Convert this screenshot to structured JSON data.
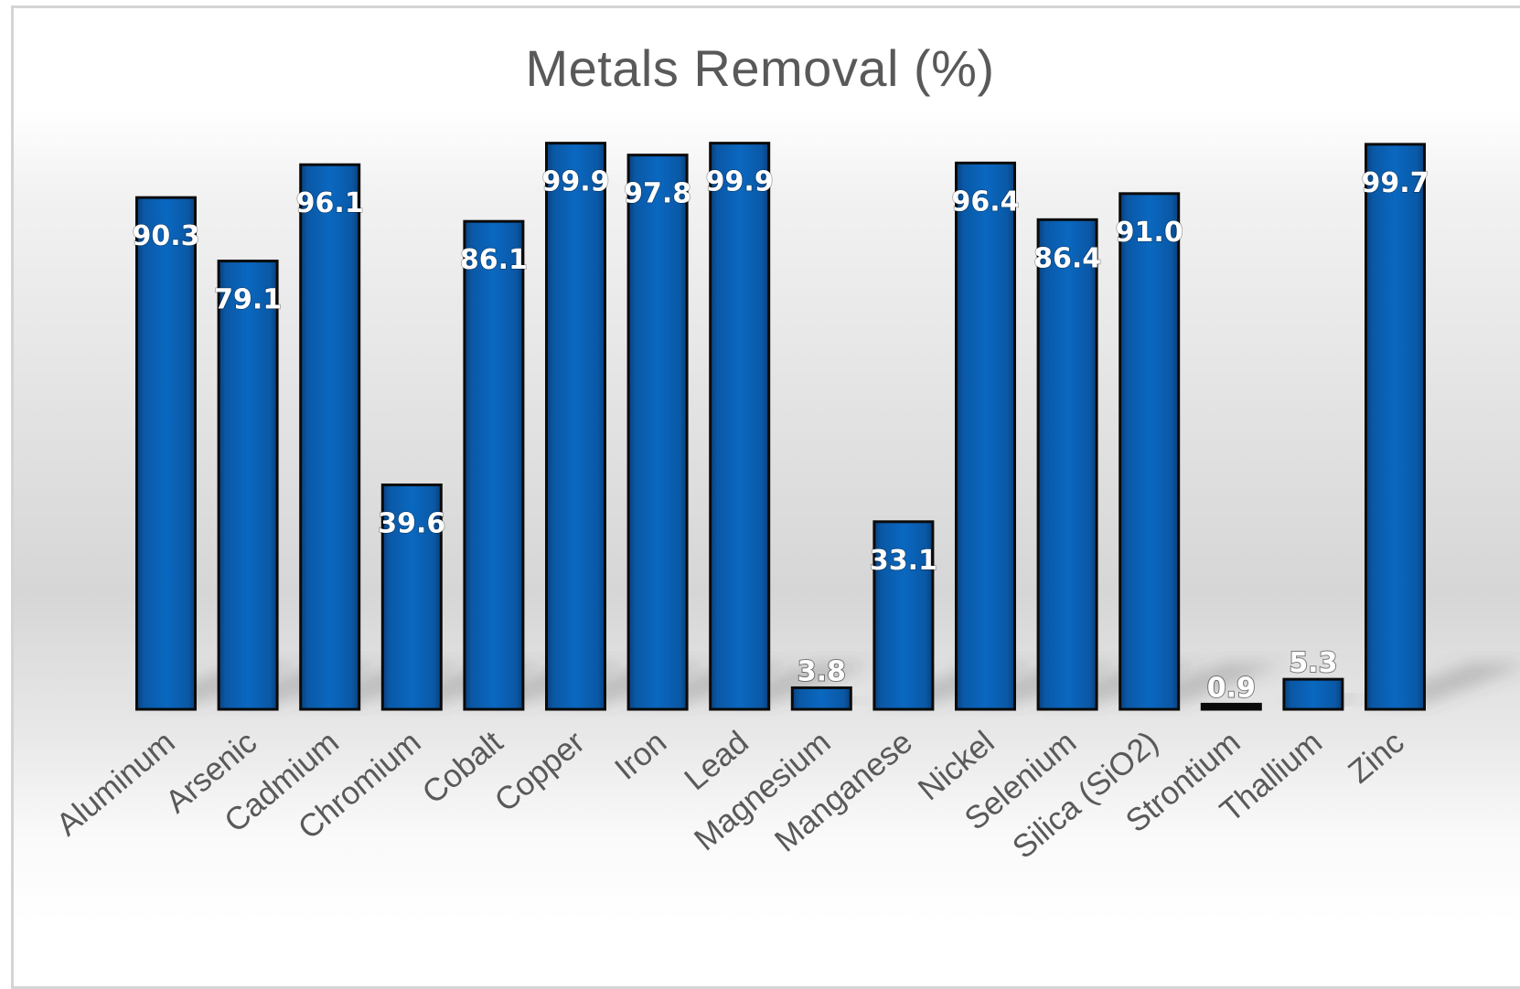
{
  "chart_data": {
    "type": "bar",
    "title": "Metals Removal (%)",
    "xlabel": "",
    "ylabel": "",
    "ylim": [
      0,
      100
    ],
    "grid": false,
    "legend": "none",
    "categories": [
      "Aluminum",
      "Arsenic",
      "Cadmium",
      "Chromium",
      "Cobalt",
      "Copper",
      "Iron",
      "Lead",
      "Magnesium",
      "Manganese",
      "Nickel",
      "Selenium",
      "Silica (SiO2)",
      "Strontium",
      "Thallium",
      "Zinc"
    ],
    "values": [
      90.3,
      79.1,
      96.1,
      39.6,
      86.1,
      99.9,
      97.8,
      99.9,
      3.8,
      33.1,
      96.4,
      86.4,
      91.0,
      0.9,
      5.3,
      99.7
    ],
    "data_labels": [
      "90.3",
      "79.1",
      "96.1",
      "39.6",
      "86.1",
      "99.9",
      "97.8",
      "99.9",
      "3.8",
      "33.1",
      "96.4",
      "86.4",
      "91.0",
      "0.9",
      "5.3",
      "99.7"
    ],
    "bar_color": "#0a62b3",
    "bar_edge_color": "#0b0b0b"
  }
}
